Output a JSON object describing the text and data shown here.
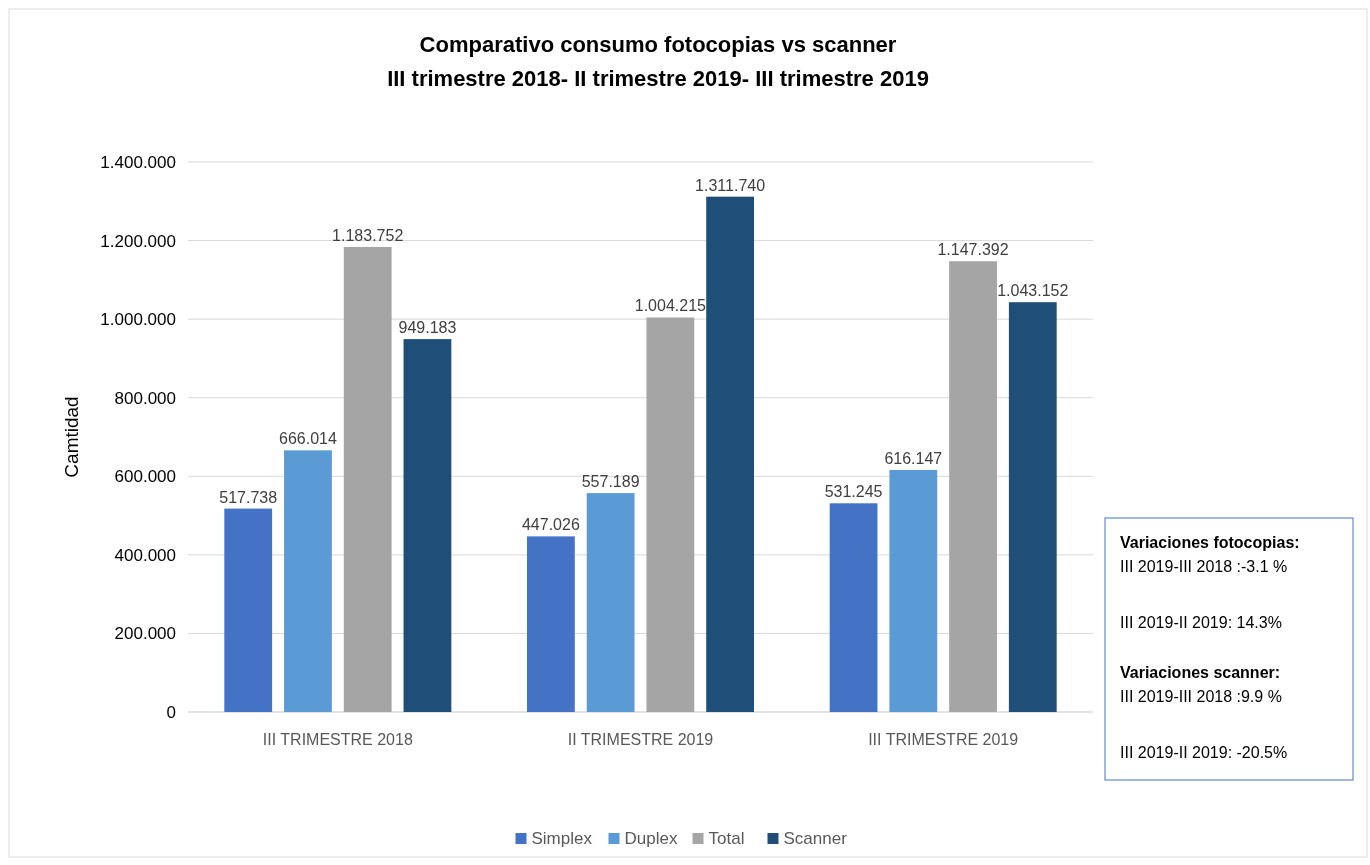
{
  "chart_data": {
    "type": "bar",
    "title": "Comparativo consumo fotocopias vs scanner",
    "subtitle": "III trimestre 2018- II trimestre 2019- III trimestre 2019",
    "ylabel": "Camtidad",
    "categories": [
      "III TRIMESTRE 2018",
      "II TRIMESTRE 2019",
      "III TRIMESTRE 2019"
    ],
    "series": [
      {
        "name": "Simplex",
        "color": "#4472c4",
        "values": [
          517738,
          447026,
          531245
        ],
        "value_labels": [
          "517.738",
          "447.026",
          "531.245"
        ]
      },
      {
        "name": "Duplex",
        "color": "#5b9bd5",
        "values": [
          666014,
          557189,
          616147
        ],
        "value_labels": [
          "666.014",
          "557.189",
          "616.147"
        ]
      },
      {
        "name": "Total",
        "color": "#a5a5a5",
        "values": [
          1183752,
          1004215,
          1147392
        ],
        "value_labels": [
          "1.183.752",
          "1.004.215",
          "1.147.392"
        ]
      },
      {
        "name": "Scanner",
        "color": "#1f4e79",
        "values": [
          949183,
          1311740,
          1043152
        ],
        "value_labels": [
          "949.183",
          "1.311.740",
          "1.043.152"
        ]
      }
    ],
    "ylim": [
      0,
      1400000
    ],
    "yticks": [
      0,
      {
        "value": 200000,
        "label": "200.000"
      },
      {
        "value": 400000,
        "label": "400.000"
      },
      {
        "value": 600000,
        "label": "600.000"
      },
      {
        "value": 800000,
        "label": "800.000"
      },
      {
        "value": 1000000,
        "label": "1.000.000"
      },
      {
        "value": 1200000,
        "label": "1.200.000"
      },
      {
        "value": 1400000,
        "label": "1.400.000"
      }
    ],
    "grid": "y",
    "legend": "bottom",
    "annotations": [
      "Variaciones fotocopias:",
      "III 2019-III 2018 :-3.1 %",
      "III 2019-II 2019: 14.3%",
      "Variaciones scanner:",
      "III 2019-III 2018 :9.9 %",
      "III 2019-II 2019: -20.5%"
    ]
  }
}
